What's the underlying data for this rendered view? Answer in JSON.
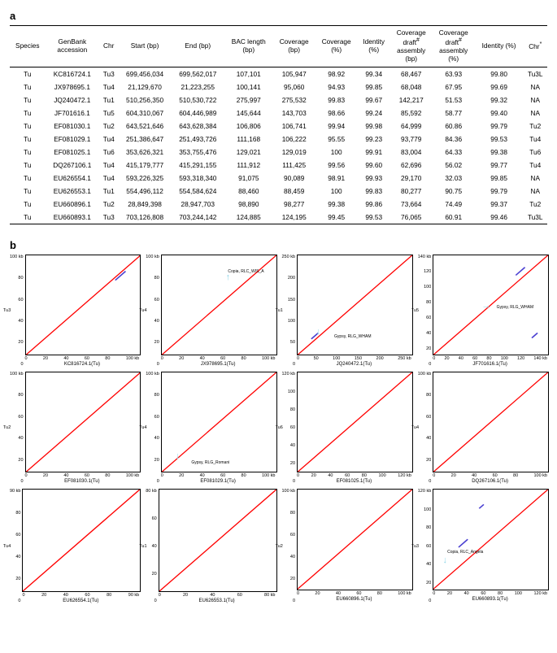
{
  "panel_a_label": "a",
  "panel_b_label": "b",
  "table": {
    "headers": [
      "Species",
      "GenBank\naccession",
      "Chr",
      "Start (bp)",
      "End (bp)",
      "BAC length\n(bp)",
      "Coverage\n(bp)",
      "Coverage\n(%)",
      "Identity\n(%)",
      "Coverage\ndraft#\nassembly\n(bp)",
      "Coverage\ndraft#\nassembly\n(%)",
      "Identity (%)",
      "Chr*"
    ],
    "rows": [
      [
        "Tu",
        "KC816724.1",
        "Tu3",
        "699,456,034",
        "699,562,017",
        "107,101",
        "105,947",
        "98.92",
        "99.34",
        "68,467",
        "63.93",
        "99.80",
        "Tu3L"
      ],
      [
        "Tu",
        "JX978695.1",
        "Tu4",
        "21,129,670",
        "21,223,255",
        "100,141",
        "95,060",
        "94.93",
        "99.85",
        "68,048",
        "67.95",
        "99.69",
        "NA"
      ],
      [
        "Tu",
        "JQ240472.1",
        "Tu1",
        "510,256,350",
        "510,530,722",
        "275,997",
        "275,532",
        "99.83",
        "99.67",
        "142,217",
        "51.53",
        "99.32",
        "NA"
      ],
      [
        "Tu",
        "JF701616.1",
        "Tu5",
        "604,310,067",
        "604,446,989",
        "145,644",
        "143,703",
        "98.66",
        "99.24",
        "85,592",
        "58.77",
        "99.40",
        "NA"
      ],
      [
        "Tu",
        "EF081030.1",
        "Tu2",
        "643,521,646",
        "643,628,384",
        "106,806",
        "106,741",
        "99.94",
        "99.98",
        "64,999",
        "60.86",
        "99.79",
        "Tu2"
      ],
      [
        "Tu",
        "EF081029.1",
        "Tu4",
        "251,386,647",
        "251,493,726",
        "111,168",
        "106,222",
        "95.55",
        "99.23",
        "93,779",
        "84.36",
        "99.53",
        "Tu4"
      ],
      [
        "Tu",
        "EF081025.1",
        "Tu6",
        "353,626,321",
        "353,755,476",
        "129,021",
        "129,019",
        "100",
        "99.91",
        "83,004",
        "64.33",
        "99.38",
        "Tu6"
      ],
      [
        "Tu",
        "DQ267106.1",
        "Tu4",
        "415,179,777",
        "415,291,155",
        "111,912",
        "111,425",
        "99.56",
        "99.60",
        "62,696",
        "56.02",
        "99.77",
        "Tu4"
      ],
      [
        "Tu",
        "EU626554.1",
        "Tu4",
        "593,226,325",
        "593,318,340",
        "91,075",
        "90,089",
        "98.91",
        "99.93",
        "29,170",
        "32.03",
        "99.85",
        "NA"
      ],
      [
        "Tu",
        "EU626553.1",
        "Tu1",
        "554,496,112",
        "554,584,624",
        "88,460",
        "88,459",
        "100",
        "99.83",
        "80,277",
        "90.75",
        "99.79",
        "NA"
      ],
      [
        "Tu",
        "EU660896.1",
        "Tu2",
        "28,849,398",
        "28,947,703",
        "98,890",
        "98,277",
        "99.38",
        "99.86",
        "73,664",
        "74.49",
        "99.37",
        "Tu2"
      ],
      [
        "Tu",
        "EU660893.1",
        "Tu3",
        "703,126,808",
        "703,244,142",
        "124,885",
        "124,195",
        "99.45",
        "99.53",
        "76,065",
        "60.91",
        "99.46",
        "Tu3L"
      ]
    ]
  },
  "plots": [
    {
      "ylab": "Tu3",
      "xcaption": "KC816724.1(Tu)",
      "xticks": [
        "0",
        "20",
        "40",
        "60",
        "80",
        "100 kb"
      ],
      "yticks": [
        "100 kb",
        "80",
        "60",
        "40",
        "20",
        "0"
      ],
      "frags": [
        {
          "l": 78,
          "t": 16,
          "w": 9,
          "h": 9
        }
      ]
    },
    {
      "ylab": "Tu4",
      "xcaption": "JX978695.1(Tu)",
      "xticks": [
        "0",
        "20",
        "40",
        "60",
        "80",
        "100 kb"
      ],
      "yticks": [
        "100 kb",
        "80",
        "60",
        "40",
        "20",
        "0"
      ],
      "annots": [
        {
          "txt": "Copia, RLC_WIS_A",
          "l": 58,
          "t": 14
        }
      ],
      "arrows": [
        {
          "dir": "up",
          "l": 56,
          "t": 18
        }
      ]
    },
    {
      "ylab": "Tu1",
      "xcaption": "JQ240472.1(Tu)",
      "xticks": [
        "0",
        "50",
        "100",
        "150",
        "200",
        "250 kb"
      ],
      "yticks": [
        "250 kb",
        "200",
        "150",
        "100",
        "50",
        "0"
      ],
      "annots": [
        {
          "txt": "Gypsy, RLG_WHAM",
          "l": 32,
          "t": 80
        }
      ],
      "arrows": [
        {
          "dir": "down",
          "l": 16,
          "t": 73
        }
      ],
      "frags": [
        {
          "l": 12,
          "t": 78,
          "w": 6,
          "h": 6
        }
      ]
    },
    {
      "ylab": "Tu5",
      "xcaption": "JF701616.1(Tu)",
      "xticks": [
        "0",
        "20",
        "40",
        "60",
        "80",
        "100",
        "120",
        "140 kb"
      ],
      "yticks": [
        "140 kb",
        "120",
        "100",
        "80",
        "60",
        "40",
        "20",
        "0"
      ],
      "annots": [
        {
          "txt": "Gypsy, RLG_WHAM",
          "l": 55,
          "t": 50
        }
      ],
      "arrows": [
        {
          "dir": "right",
          "l": 42,
          "t": 47
        }
      ],
      "frags": [
        {
          "l": 72,
          "t": 12,
          "w": 8,
          "h": 8
        },
        {
          "l": 86,
          "t": 78,
          "w": 5,
          "h": 5
        }
      ]
    },
    {
      "ylab": "Tu2",
      "xcaption": "EF081030.1(Tu)",
      "xticks": [
        "0",
        "20",
        "40",
        "60",
        "80",
        "100 kb"
      ],
      "yticks": [
        "100 kb",
        "80",
        "60",
        "40",
        "20",
        "0"
      ]
    },
    {
      "ylab": "Tu4",
      "xcaption": "EF081029.1(Tu)",
      "xticks": [
        "0",
        "20",
        "40",
        "60",
        "80",
        "100 kb"
      ],
      "yticks": [
        "100 kb",
        "80",
        "60",
        "40",
        "20",
        "0"
      ],
      "annots": [
        {
          "txt": "Gypsy, RLG_Romani",
          "l": 26,
          "t": 88
        }
      ],
      "arrows": [
        {
          "dir": "down",
          "l": 12,
          "t": 80
        }
      ]
    },
    {
      "ylab": "Tu6",
      "xcaption": "EF081025.1(Tu)",
      "xticks": [
        "0",
        "20",
        "40",
        "60",
        "80",
        "100",
        "120 kb"
      ],
      "yticks": [
        "120 kb",
        "100",
        "80",
        "60",
        "40",
        "20",
        "0"
      ]
    },
    {
      "ylab": "Tu4",
      "xcaption": "DQ267106.1(Tu)",
      "xticks": [
        "0",
        "20",
        "40",
        "60",
        "80",
        "100 kb"
      ],
      "yticks": [
        "100 kb",
        "80",
        "60",
        "40",
        "20",
        "0"
      ]
    },
    {
      "ylab": "Tu4",
      "xcaption": "EU626554.1(Tu)",
      "xticks": [
        "0",
        "20",
        "40",
        "60",
        "80",
        "90 kb"
      ],
      "yticks": [
        "90 kb",
        "80",
        "60",
        "40",
        "20",
        "0"
      ]
    },
    {
      "ylab": "Tu1",
      "xcaption": "EU626553.1(Tu)",
      "xticks": [
        "0",
        "20",
        "40",
        "60",
        "80 kb"
      ],
      "yticks": [
        "80 kb",
        "60",
        "40",
        "20",
        "0"
      ]
    },
    {
      "ylab": "Tu2",
      "xcaption": "EU660896.1(Tu)",
      "xticks": [
        "0",
        "20",
        "40",
        "60",
        "80",
        "100 kb"
      ],
      "yticks": [
        "100 kb",
        "80",
        "60",
        "40",
        "20",
        "0"
      ]
    },
    {
      "ylab": "Tu3",
      "xcaption": "EU660893.1(Tu)",
      "xticks": [
        "0",
        "20",
        "40",
        "60",
        "80",
        "100",
        "120 kb"
      ],
      "yticks": [
        "120 kb",
        "100",
        "80",
        "60",
        "40",
        "20",
        "0"
      ],
      "annots": [
        {
          "txt": "Copia, RLC_Angela",
          "l": 12,
          "t": 60
        }
      ],
      "arrows": [
        {
          "dir": "down",
          "l": 8,
          "t": 67
        }
      ],
      "frags": [
        {
          "l": 22,
          "t": 50,
          "w": 8,
          "h": 8
        },
        {
          "l": 40,
          "t": 15,
          "w": 4,
          "h": 4
        }
      ]
    }
  ],
  "colors": {
    "diag": "#ff0000",
    "arrow": "#8fd6e8",
    "frag": "#4a3fd1"
  }
}
